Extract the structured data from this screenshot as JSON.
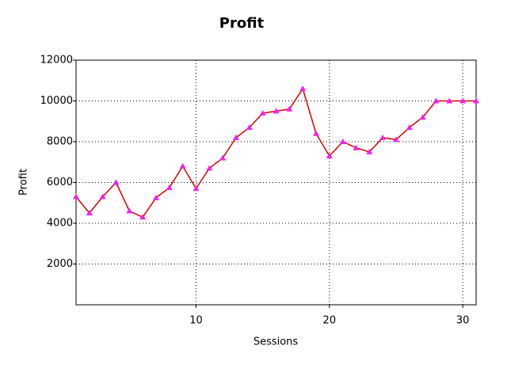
{
  "chart_data": {
    "type": "line",
    "title": "Profit",
    "x_label": "Sessions",
    "y_label": "Profit",
    "x": [
      1,
      2,
      3,
      4,
      5,
      6,
      7,
      8,
      9,
      10,
      11,
      12,
      13,
      14,
      15,
      16,
      17,
      18,
      19,
      20,
      21,
      22,
      23,
      24,
      25,
      26,
      27,
      28,
      29,
      30,
      31
    ],
    "series": [
      {
        "name": "Profit",
        "color": "#dd0000",
        "marker_color": "#ee22ee",
        "values": [
          5300,
          4500,
          5300,
          6000,
          4600,
          4300,
          5250,
          5750,
          6800,
          5700,
          6700,
          7200,
          8200,
          8700,
          9400,
          9500,
          9600,
          10600,
          8400,
          7300,
          8000,
          7700,
          7500,
          8200,
          8100,
          8700,
          9200,
          10000,
          10000,
          10000,
          10000
        ]
      }
    ],
    "xlim": [
      1,
      31
    ],
    "xticks": [
      10,
      20,
      30
    ],
    "ylim": [
      0,
      12000
    ],
    "yticks": [
      2000,
      4000,
      6000,
      8000,
      10000,
      12000
    ],
    "grid": true
  }
}
